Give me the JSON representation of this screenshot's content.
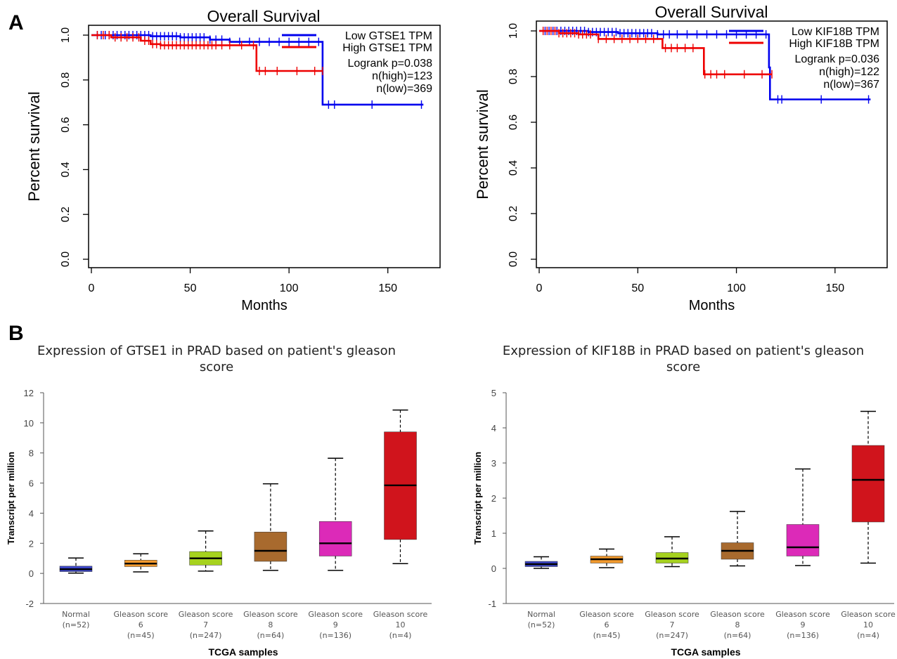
{
  "panels": {
    "a_label": "A",
    "b_label": "B"
  },
  "colors": {
    "low": "#0000ee",
    "high": "#ee0000",
    "box_normal": "#3c46c8",
    "box_g6": "#f29a2e",
    "box_g7": "#a6d21e",
    "box_g8": "#a86a2e",
    "box_g9": "#dc2ab8",
    "box_g10": "#d0141c"
  },
  "chart_data": [
    {
      "type": "line",
      "title": "Overall Survival",
      "xlabel": "Months",
      "ylabel": "Percent survival",
      "xlim": [
        0,
        175
      ],
      "ylim": [
        0,
        1.0
      ],
      "xticks": [
        "0",
        "50",
        "100",
        "150"
      ],
      "yticks": [
        "0.0",
        "0.2",
        "0.4",
        "0.6",
        "0.8",
        "1.0"
      ],
      "legend": [
        "Low GTSE1 TPM",
        "High GTSE1 TPM"
      ],
      "annotations": [
        "Logrank p=0.038",
        "n(high)=123",
        "n(low)=369"
      ],
      "legend_position": "top-right",
      "series": [
        {
          "name": "Low GTSE1 TPM",
          "color_key": "low",
          "steps": [
            [
              0,
              1.0
            ],
            [
              30,
              0.995
            ],
            [
              45,
              0.99
            ],
            [
              60,
              0.98
            ],
            [
              70,
              0.97
            ],
            [
              116,
              0.97
            ],
            [
              117,
              0.69
            ],
            [
              168,
              0.69
            ]
          ],
          "censor": [
            3,
            5,
            7,
            9,
            11,
            13,
            15,
            17,
            19,
            21,
            23,
            25,
            27,
            29,
            31,
            33,
            35,
            37,
            39,
            41,
            43,
            45,
            47,
            49,
            51,
            53,
            55,
            57,
            60,
            63,
            66,
            70,
            75,
            80,
            85,
            90,
            95,
            100,
            105,
            110,
            115,
            120,
            123,
            142,
            167
          ]
        },
        {
          "name": "High GTSE1 TPM",
          "color_key": "high",
          "steps": [
            [
              0,
              1.0
            ],
            [
              10,
              0.99
            ],
            [
              25,
              0.975
            ],
            [
              30,
              0.96
            ],
            [
              35,
              0.955
            ],
            [
              83,
              0.955
            ],
            [
              83.5,
              0.84
            ],
            [
              115,
              0.84
            ],
            [
              117,
              0.84
            ]
          ],
          "censor": [
            3,
            6,
            9,
            12,
            15,
            18,
            21,
            24,
            27,
            29,
            31,
            33,
            35,
            37,
            39,
            41,
            43,
            45,
            47,
            49,
            51,
            53,
            55,
            57,
            59,
            61,
            63,
            66,
            70,
            76,
            82,
            85,
            88,
            94,
            104,
            113,
            117
          ]
        }
      ]
    },
    {
      "type": "line",
      "title": "Overall Survival",
      "xlabel": "Months",
      "ylabel": "Percent survival",
      "xlim": [
        0,
        175
      ],
      "ylim": [
        0,
        1.0
      ],
      "xticks": [
        "0",
        "50",
        "100",
        "150"
      ],
      "yticks": [
        "0.0",
        "0.2",
        "0.4",
        "0.6",
        "0.8",
        "1.0"
      ],
      "legend": [
        "Low KIF18B TPM",
        "High KIF18B TPM"
      ],
      "annotations": [
        "Logrank p=0.036",
        "n(high)=122",
        "n(low)=367"
      ],
      "legend_position": "top-right",
      "series": [
        {
          "name": "Low KIF18B TPM",
          "color_key": "low",
          "steps": [
            [
              0,
              1.0
            ],
            [
              25,
              0.995
            ],
            [
              40,
              0.99
            ],
            [
              60,
              0.985
            ],
            [
              116,
              0.985
            ],
            [
              116.5,
              0.84
            ],
            [
              117,
              0.7
            ],
            [
              168,
              0.7
            ]
          ],
          "censor": [
            3,
            5,
            7,
            9,
            11,
            13,
            15,
            17,
            19,
            21,
            23,
            25,
            27,
            29,
            31,
            33,
            35,
            37,
            39,
            41,
            43,
            45,
            47,
            49,
            51,
            53,
            55,
            57,
            60,
            63,
            66,
            70,
            75,
            80,
            85,
            90,
            95,
            100,
            105,
            110,
            115,
            121,
            123,
            143,
            167
          ]
        },
        {
          "name": "High KIF18B TPM",
          "color_key": "high",
          "steps": [
            [
              0,
              1.0
            ],
            [
              10,
              0.99
            ],
            [
              20,
              0.985
            ],
            [
              30,
              0.965
            ],
            [
              62,
              0.965
            ],
            [
              62.5,
              0.925
            ],
            [
              83,
              0.925
            ],
            [
              83.5,
              0.81
            ],
            [
              118,
              0.81
            ]
          ],
          "censor": [
            2,
            4,
            6,
            8,
            10,
            12,
            14,
            16,
            18,
            20,
            22,
            24,
            26,
            30,
            34,
            38,
            42,
            46,
            50,
            54,
            58,
            64,
            67,
            70,
            74,
            78,
            84,
            87,
            90,
            94,
            104,
            113,
            118
          ]
        }
      ]
    },
    {
      "type": "box",
      "title_lines": [
        "Expression of GTSE1 in PRAD based on patient's gleason",
        "score"
      ],
      "xlabel": "TCGA samples",
      "ylabel": "Transcript per million",
      "ylim": [
        -2,
        12
      ],
      "yticks": [
        "-2",
        "0",
        "2",
        "4",
        "6",
        "8",
        "10",
        "12"
      ],
      "groups": [
        {
          "label": [
            "Normal",
            "(n=52)"
          ],
          "color_key": "box_normal",
          "min": 0.02,
          "q1": 0.12,
          "median": 0.28,
          "q3": 0.48,
          "max": 1.02
        },
        {
          "label": [
            "Gleason score",
            "6",
            "(n=45)"
          ],
          "color_key": "box_g6",
          "min": 0.1,
          "q1": 0.45,
          "median": 0.65,
          "q3": 0.88,
          "max": 1.3
        },
        {
          "label": [
            "Gleason score",
            "7",
            "(n=247)"
          ],
          "color_key": "box_g7",
          "min": 0.15,
          "q1": 0.55,
          "median": 1.0,
          "q3": 1.45,
          "max": 2.82
        },
        {
          "label": [
            "Gleason score",
            "8",
            "(n=64)"
          ],
          "color_key": "box_g8",
          "min": 0.2,
          "q1": 0.8,
          "median": 1.5,
          "q3": 2.75,
          "max": 5.95
        },
        {
          "label": [
            "Gleason score",
            "9",
            "(n=136)"
          ],
          "color_key": "box_g9",
          "min": 0.2,
          "q1": 1.15,
          "median": 2.0,
          "q3": 3.45,
          "max": 7.65
        },
        {
          "label": [
            "Gleason score",
            "10",
            "(n=4)"
          ],
          "color_key": "box_g10",
          "min": 0.65,
          "q1": 2.25,
          "median": 5.85,
          "q3": 9.4,
          "max": 10.85
        }
      ]
    },
    {
      "type": "box",
      "title_lines": [
        "Expression of KIF18B in PRAD based on patient's gleason",
        "score"
      ],
      "xlabel": "TCGA samples",
      "ylabel": "Transcript per million",
      "ylim": [
        -1,
        5
      ],
      "yticks": [
        "-1",
        "0",
        "1",
        "2",
        "3",
        "4",
        "5"
      ],
      "groups": [
        {
          "label": [
            "Normal",
            "(n=52)"
          ],
          "color_key": "box_normal",
          "min": 0.0,
          "q1": 0.05,
          "median": 0.12,
          "q3": 0.2,
          "max": 0.33
        },
        {
          "label": [
            "Gleason score",
            "6",
            "(n=45)"
          ],
          "color_key": "box_g6",
          "min": 0.02,
          "q1": 0.15,
          "median": 0.26,
          "q3": 0.35,
          "max": 0.55
        },
        {
          "label": [
            "Gleason score",
            "7",
            "(n=247)"
          ],
          "color_key": "box_g7",
          "min": 0.05,
          "q1": 0.15,
          "median": 0.28,
          "q3": 0.45,
          "max": 0.9
        },
        {
          "label": [
            "Gleason score",
            "8",
            "(n=64)"
          ],
          "color_key": "box_g8",
          "min": 0.07,
          "q1": 0.26,
          "median": 0.5,
          "q3": 0.73,
          "max": 1.62
        },
        {
          "label": [
            "Gleason score",
            "9",
            "(n=136)"
          ],
          "color_key": "box_g9",
          "min": 0.08,
          "q1": 0.35,
          "median": 0.6,
          "q3": 1.25,
          "max": 2.83
        },
        {
          "label": [
            "Gleason score",
            "10",
            "(n=4)"
          ],
          "color_key": "box_g10",
          "min": 0.15,
          "q1": 1.32,
          "median": 2.52,
          "q3": 3.5,
          "max": 4.47
        }
      ]
    }
  ]
}
